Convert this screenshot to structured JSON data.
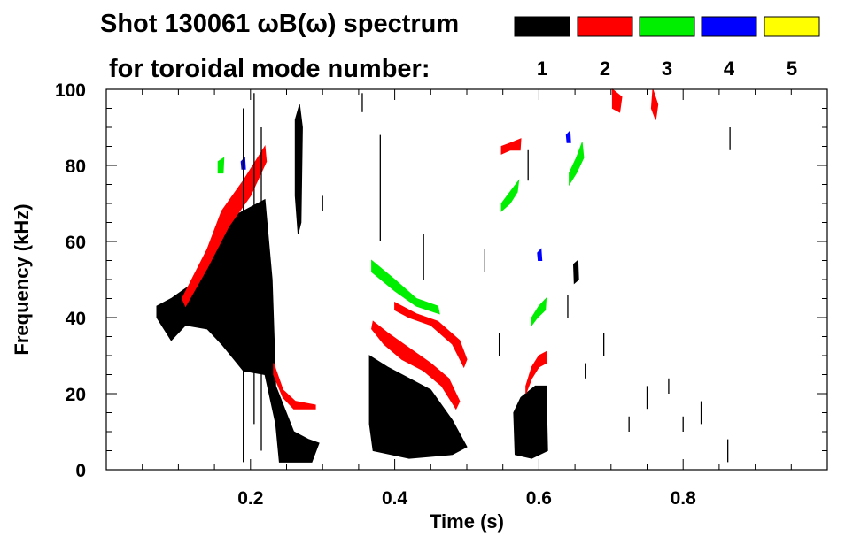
{
  "chart_data": {
    "type": "heatmap",
    "title_line1": "Shot 130061 ωB(ω) spectrum",
    "title_line2": "for toroidal mode number:",
    "xlabel": "Time (s)",
    "ylabel": "Frequency (kHz)",
    "xlim": [
      0.0,
      1.0
    ],
    "ylim": [
      0,
      100
    ],
    "x_ticks": [
      {
        "value": 0.2,
        "label": "0.2"
      },
      {
        "value": 0.4,
        "label": "0.4"
      },
      {
        "value": 0.6,
        "label": "0.6"
      },
      {
        "value": 0.8,
        "label": "0.8"
      }
    ],
    "y_ticks": [
      {
        "value": 0,
        "label": "0"
      },
      {
        "value": 20,
        "label": "20"
      },
      {
        "value": 40,
        "label": "40"
      },
      {
        "value": 60,
        "label": "60"
      },
      {
        "value": 80,
        "label": "80"
      },
      {
        "value": 100,
        "label": "100"
      }
    ],
    "legend": [
      {
        "n": "1",
        "color": "#000000"
      },
      {
        "n": "2",
        "color": "#ff0000"
      },
      {
        "n": "3",
        "color": "#00ee00"
      },
      {
        "n": "4",
        "color": "#0000ff"
      },
      {
        "n": "5",
        "color": "#ffff00"
      }
    ],
    "regions": [
      {
        "mode": 1,
        "points": [
          [
            0.07,
            43
          ],
          [
            0.09,
            45
          ],
          [
            0.12,
            49
          ],
          [
            0.16,
            61
          ],
          [
            0.18,
            67
          ],
          [
            0.22,
            71
          ],
          [
            0.23,
            50
          ],
          [
            0.235,
            22
          ],
          [
            0.26,
            10
          ],
          [
            0.28,
            8
          ],
          [
            0.295,
            7
          ],
          [
            0.285,
            2
          ],
          [
            0.24,
            2
          ],
          [
            0.235,
            12
          ],
          [
            0.22,
            25
          ],
          [
            0.19,
            26
          ],
          [
            0.16,
            33
          ],
          [
            0.14,
            37
          ],
          [
            0.11,
            38
          ],
          [
            0.09,
            34
          ],
          [
            0.07,
            40
          ]
        ]
      },
      {
        "mode": 1,
        "points": [
          [
            0.365,
            30
          ],
          [
            0.39,
            27
          ],
          [
            0.42,
            24
          ],
          [
            0.45,
            21
          ],
          [
            0.48,
            13
          ],
          [
            0.5,
            6
          ],
          [
            0.48,
            4
          ],
          [
            0.42,
            3
          ],
          [
            0.37,
            5
          ],
          [
            0.365,
            12
          ]
        ]
      },
      {
        "mode": 1,
        "points": [
          [
            0.565,
            15
          ],
          [
            0.575,
            19
          ],
          [
            0.595,
            22
          ],
          [
            0.61,
            22
          ],
          [
            0.612,
            5
          ],
          [
            0.59,
            3
          ],
          [
            0.567,
            4
          ]
        ]
      },
      {
        "mode": 1,
        "points": [
          [
            0.262,
            92
          ],
          [
            0.268,
            96
          ],
          [
            0.272,
            90
          ],
          [
            0.27,
            65
          ],
          [
            0.266,
            62
          ],
          [
            0.262,
            72
          ]
        ]
      },
      {
        "mode": 1,
        "points": [
          [
            0.648,
            54
          ],
          [
            0.654,
            55
          ],
          [
            0.655,
            50
          ],
          [
            0.649,
            49
          ]
        ]
      },
      {
        "mode": 2,
        "points": [
          [
            0.105,
            45
          ],
          [
            0.14,
            58
          ],
          [
            0.16,
            68
          ],
          [
            0.19,
            76
          ],
          [
            0.22,
            85
          ],
          [
            0.222,
            81
          ],
          [
            0.2,
            72
          ],
          [
            0.17,
            64
          ],
          [
            0.14,
            53
          ],
          [
            0.11,
            43
          ]
        ]
      },
      {
        "mode": 2,
        "points": [
          [
            0.232,
            28
          ],
          [
            0.245,
            21
          ],
          [
            0.262,
            18
          ],
          [
            0.29,
            17
          ],
          [
            0.29,
            16
          ],
          [
            0.26,
            16
          ],
          [
            0.245,
            19
          ],
          [
            0.232,
            25
          ]
        ]
      },
      {
        "mode": 2,
        "points": [
          [
            0.37,
            39
          ],
          [
            0.39,
            36
          ],
          [
            0.42,
            32
          ],
          [
            0.45,
            28
          ],
          [
            0.475,
            24
          ],
          [
            0.49,
            18
          ],
          [
            0.485,
            16
          ],
          [
            0.465,
            22
          ],
          [
            0.44,
            26
          ],
          [
            0.41,
            29
          ],
          [
            0.385,
            33
          ],
          [
            0.368,
            37
          ]
        ]
      },
      {
        "mode": 2,
        "points": [
          [
            0.4,
            44
          ],
          [
            0.43,
            41
          ],
          [
            0.46,
            39
          ],
          [
            0.49,
            34
          ],
          [
            0.5,
            29
          ],
          [
            0.496,
            27
          ],
          [
            0.48,
            33
          ],
          [
            0.45,
            38
          ],
          [
            0.42,
            40
          ],
          [
            0.4,
            42
          ]
        ]
      },
      {
        "mode": 2,
        "points": [
          [
            0.582,
            22
          ],
          [
            0.59,
            27
          ],
          [
            0.6,
            30
          ],
          [
            0.61,
            31
          ],
          [
            0.61,
            28
          ],
          [
            0.6,
            27
          ],
          [
            0.59,
            24
          ],
          [
            0.582,
            20
          ]
        ]
      },
      {
        "mode": 2,
        "points": [
          [
            0.548,
            85
          ],
          [
            0.562,
            86
          ],
          [
            0.575,
            87
          ],
          [
            0.574,
            84
          ],
          [
            0.56,
            84
          ],
          [
            0.548,
            83
          ]
        ]
      },
      {
        "mode": 2,
        "points": [
          [
            0.702,
            100
          ],
          [
            0.715,
            98
          ],
          [
            0.712,
            94
          ],
          [
            0.702,
            95
          ]
        ]
      },
      {
        "mode": 2,
        "points": [
          [
            0.758,
            100
          ],
          [
            0.765,
            96
          ],
          [
            0.762,
            92
          ],
          [
            0.756,
            95
          ]
        ]
      },
      {
        "mode": 3,
        "points": [
          [
            0.368,
            55
          ],
          [
            0.4,
            50
          ],
          [
            0.43,
            45
          ],
          [
            0.46,
            43
          ],
          [
            0.462,
            41
          ],
          [
            0.43,
            43
          ],
          [
            0.4,
            47
          ],
          [
            0.368,
            52
          ]
        ]
      },
      {
        "mode": 3,
        "points": [
          [
            0.548,
            70
          ],
          [
            0.56,
            73
          ],
          [
            0.572,
            76
          ],
          [
            0.57,
            73
          ],
          [
            0.56,
            70
          ],
          [
            0.548,
            68
          ]
        ]
      },
      {
        "mode": 3,
        "points": [
          [
            0.59,
            40
          ],
          [
            0.6,
            43
          ],
          [
            0.61,
            45
          ],
          [
            0.609,
            42
          ],
          [
            0.598,
            40
          ],
          [
            0.59,
            38
          ]
        ]
      },
      {
        "mode": 3,
        "points": [
          [
            0.642,
            78
          ],
          [
            0.652,
            82
          ],
          [
            0.66,
            86
          ],
          [
            0.662,
            82
          ],
          [
            0.652,
            78
          ],
          [
            0.642,
            75
          ]
        ]
      },
      {
        "mode": 3,
        "points": [
          [
            0.155,
            81
          ],
          [
            0.163,
            82
          ],
          [
            0.162,
            78
          ],
          [
            0.155,
            78
          ]
        ]
      },
      {
        "mode": 4,
        "points": [
          [
            0.187,
            81
          ],
          [
            0.192,
            82
          ],
          [
            0.193,
            79
          ],
          [
            0.188,
            79
          ]
        ]
      },
      {
        "mode": 4,
        "points": [
          [
            0.598,
            57
          ],
          [
            0.603,
            58
          ],
          [
            0.604,
            55
          ],
          [
            0.599,
            55
          ]
        ]
      },
      {
        "mode": 4,
        "points": [
          [
            0.638,
            88
          ],
          [
            0.643,
            89
          ],
          [
            0.644,
            86
          ],
          [
            0.639,
            86
          ]
        ]
      }
    ],
    "speckle": [
      {
        "mode": 1,
        "x": 0.19,
        "y1": 2,
        "y2": 95
      },
      {
        "mode": 1,
        "x": 0.205,
        "y1": 12,
        "y2": 99
      },
      {
        "mode": 1,
        "x": 0.215,
        "y1": 5,
        "y2": 90
      },
      {
        "mode": 1,
        "x": 0.3,
        "y1": 68,
        "y2": 72
      },
      {
        "mode": 1,
        "x": 0.355,
        "y1": 94,
        "y2": 99
      },
      {
        "mode": 1,
        "x": 0.38,
        "y1": 60,
        "y2": 88
      },
      {
        "mode": 1,
        "x": 0.44,
        "y1": 50,
        "y2": 62
      },
      {
        "mode": 1,
        "x": 0.525,
        "y1": 52,
        "y2": 58
      },
      {
        "mode": 1,
        "x": 0.545,
        "y1": 30,
        "y2": 36
      },
      {
        "mode": 1,
        "x": 0.585,
        "y1": 76,
        "y2": 84
      },
      {
        "mode": 1,
        "x": 0.64,
        "y1": 40,
        "y2": 46
      },
      {
        "mode": 1,
        "x": 0.665,
        "y1": 24,
        "y2": 28
      },
      {
        "mode": 1,
        "x": 0.69,
        "y1": 30,
        "y2": 36
      },
      {
        "mode": 1,
        "x": 0.725,
        "y1": 10,
        "y2": 14
      },
      {
        "mode": 1,
        "x": 0.75,
        "y1": 16,
        "y2": 22
      },
      {
        "mode": 1,
        "x": 0.78,
        "y1": 20,
        "y2": 24
      },
      {
        "mode": 1,
        "x": 0.8,
        "y1": 10,
        "y2": 14
      },
      {
        "mode": 1,
        "x": 0.825,
        "y1": 12,
        "y2": 18
      },
      {
        "mode": 1,
        "x": 0.862,
        "y1": 2,
        "y2": 8
      },
      {
        "mode": 1,
        "x": 0.865,
        "y1": 84,
        "y2": 90
      }
    ]
  }
}
